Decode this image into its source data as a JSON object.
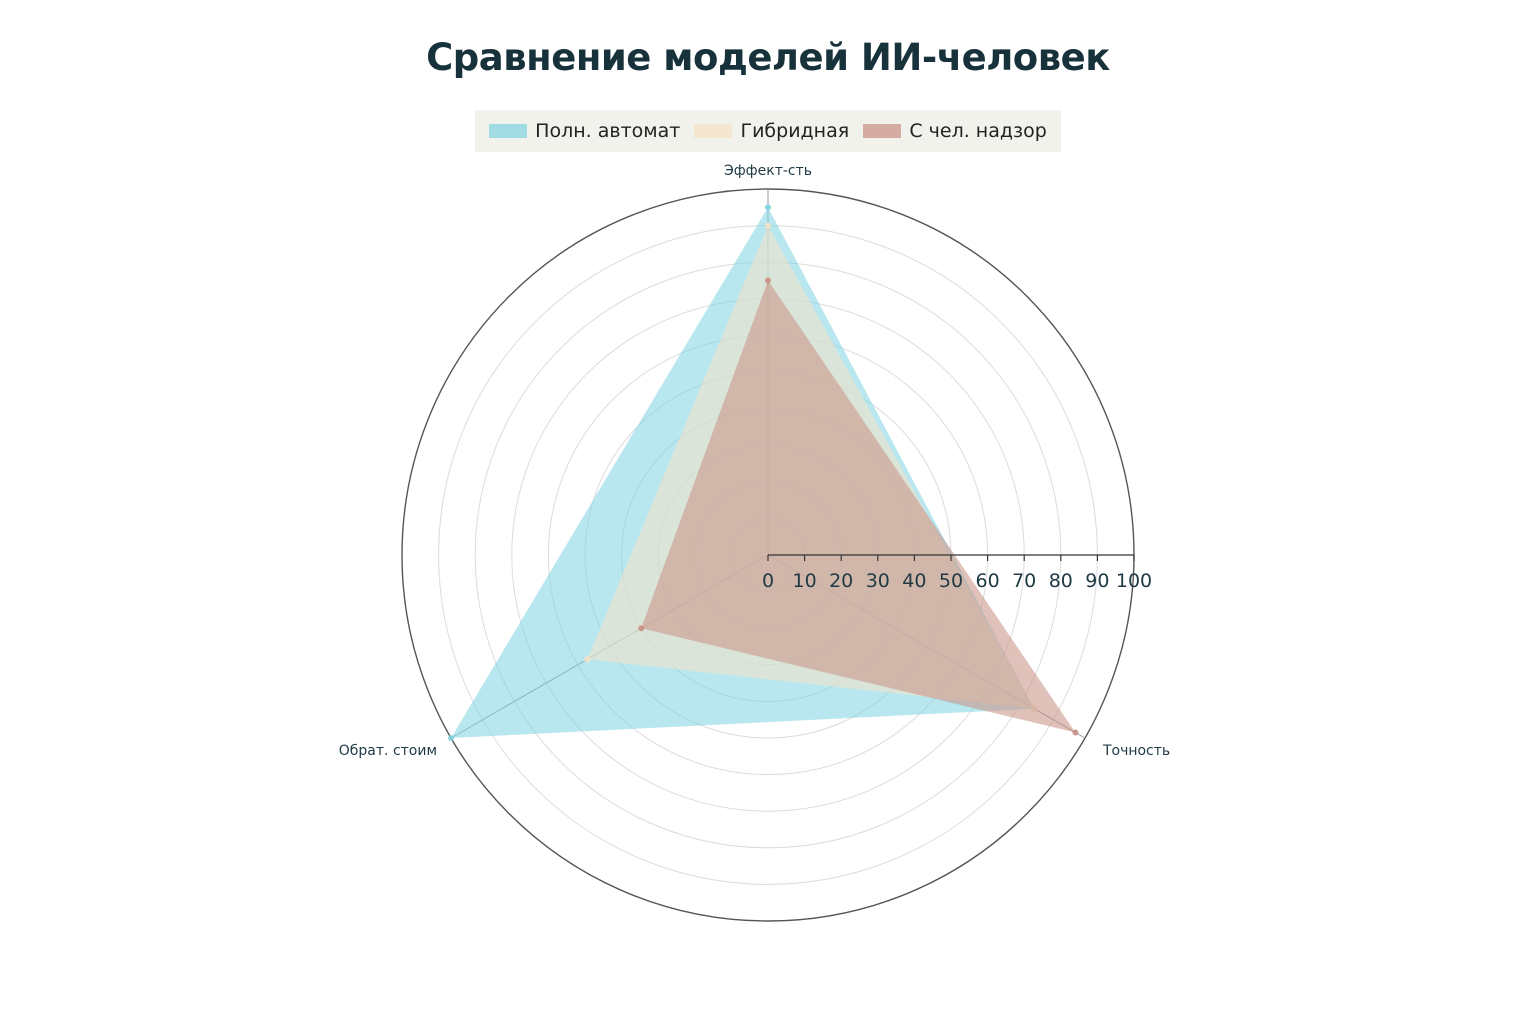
{
  "title": "Сравнение моделей ИИ-человек",
  "chart_data": {
    "type": "radar",
    "title": "Сравнение моделей ИИ-человек",
    "axes": [
      "Эффект-сть",
      "Точность",
      "Обрат. стоим"
    ],
    "radial_range": [
      0,
      100
    ],
    "radial_ticks": [
      0,
      10,
      20,
      30,
      40,
      50,
      60,
      70,
      80,
      90,
      100
    ],
    "grid": true,
    "legend_position": "top",
    "series": [
      {
        "name": "Полн. автомат",
        "values": [
          95,
          84,
          100
        ],
        "color": "#7fd3e1"
      },
      {
        "name": "Гибридная",
        "values": [
          90,
          84,
          57
        ],
        "color": "#f7e1c7"
      },
      {
        "name": "С чел. надзор",
        "values": [
          75,
          97,
          40
        ],
        "color": "#c98f83"
      }
    ]
  }
}
